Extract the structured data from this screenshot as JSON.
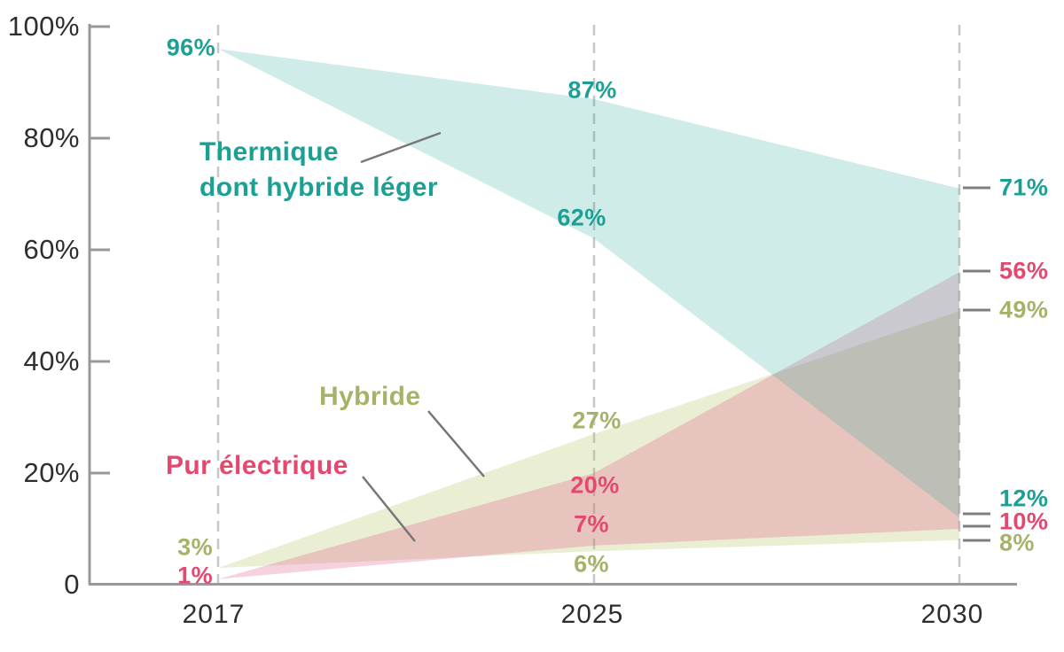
{
  "chart_data": {
    "type": "area",
    "title": "",
    "x_labels": [
      "2017",
      "2025",
      "2030"
    ],
    "ylim": [
      0,
      100
    ],
    "y_ticks": [
      {
        "value": 100,
        "label": "100%"
      },
      {
        "value": 80,
        "label": "80%"
      },
      {
        "value": 60,
        "label": "60%"
      },
      {
        "value": 40,
        "label": "40%"
      },
      {
        "value": 20,
        "label": "20%"
      },
      {
        "value": 0,
        "label": "0"
      }
    ],
    "guides": {
      "style": "dashed-vertical",
      "at": [
        "2017",
        "2025",
        "2030"
      ]
    },
    "legend_position": "inline labels with leader lines",
    "grid": "off",
    "series": [
      {
        "name": "Thermique dont hybride léger",
        "label_lines": [
          "Thermique",
          "dont hybride léger"
        ],
        "color": "#1da094",
        "fill_rgba": "rgba(42,169,155,0.22)",
        "x": [
          2017,
          2025,
          2030
        ],
        "upper": [
          96,
          87,
          71
        ],
        "lower": [
          96,
          62,
          12
        ],
        "point_labels": {
          "start": "96%",
          "upper_2025": "87%",
          "lower_2025": "62%",
          "upper_2030": "71%",
          "lower_2030": "12%"
        }
      },
      {
        "name": "Pur électrique",
        "label_lines": [
          "Pur électrique"
        ],
        "color": "#e5486e",
        "fill_rgba": "rgba(224,93,135,0.28)",
        "x": [
          2017,
          2025,
          2030
        ],
        "upper": [
          1,
          20,
          56
        ],
        "lower": [
          1,
          7,
          10
        ],
        "point_labels": {
          "start": "1%",
          "upper_2025": "20%",
          "lower_2025": "7%",
          "upper_2030": "56%",
          "lower_2030": "10%"
        }
      },
      {
        "name": "Hybride",
        "label_lines": [
          "Hybride"
        ],
        "color": "#a7b269",
        "fill_rgba": "rgba(181,193,98,0.28)",
        "x": [
          2017,
          2025,
          2030
        ],
        "upper": [
          3,
          27,
          49
        ],
        "lower": [
          3,
          6,
          8
        ],
        "point_labels": {
          "start": "3%",
          "upper_2025": "27%",
          "lower_2025": "6%",
          "upper_2030": "49%",
          "lower_2030": "8%"
        }
      }
    ],
    "colors": {
      "axis": "#97999c",
      "guide": "#c6c7c8",
      "leader_line": "#75767a",
      "right_tick": "#7d7f82",
      "axis_text": "#2e2e30"
    }
  }
}
